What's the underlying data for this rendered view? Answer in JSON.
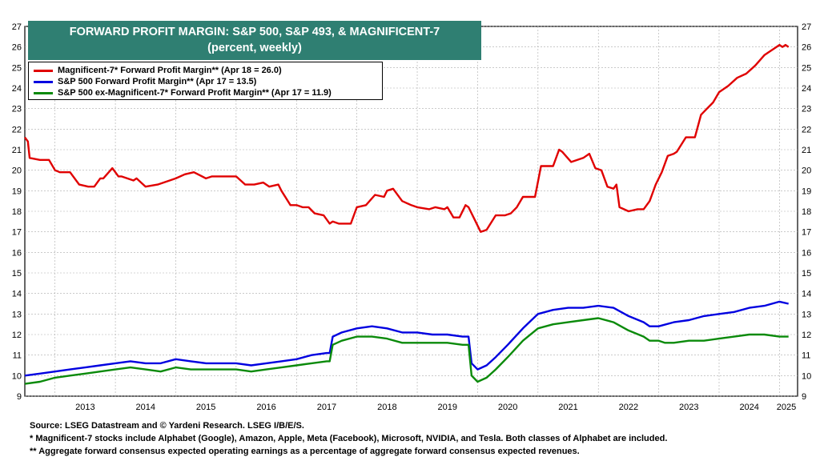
{
  "title": "FORWARD PROFIT MARGIN: S&P 500, S&P 493, & MAGNIFICENT-7",
  "subtitle": "(percent, weekly)",
  "legend": [
    {
      "label": "Magnificent-7* Forward Profit Margin** (Apr 18 = 26.0)",
      "color": "#e00000"
    },
    {
      "label": "S&P 500 Forward Profit Margin** (Apr 17 = 13.5)",
      "color": "#0000e0"
    },
    {
      "label": "S&P 500 ex-Magnificent-7* Forward Profit Margin** (Apr 17 = 11.9)",
      "color": "#0a8a0a"
    }
  ],
  "footnotes": [
    "Source: LSEG Datastream and © Yardeni Research. LSEG I/B/E/S.",
    "* Magnificent-7 stocks include Alphabet (Google), Amazon, Apple, Meta (Facebook), Microsoft, NVIDIA, and Tesla. Both classes of Alphabet are included.",
    "** Aggregate forward consensus expected operating earnings as a percentage of aggregate forward consensus expected revenues."
  ],
  "chart_data": {
    "type": "line",
    "title": "FORWARD PROFIT MARGIN: S&P 500, S&P 493, & MAGNIFICENT-7",
    "subtitle": "(percent, weekly)",
    "xlabel": "",
    "ylabel": "",
    "x_range": [
      2012.5,
      2025.3
    ],
    "ylim": [
      9,
      27
    ],
    "y_ticks": [
      9,
      10,
      11,
      12,
      13,
      14,
      15,
      16,
      17,
      18,
      19,
      20,
      21,
      22,
      23,
      24,
      25,
      26,
      27
    ],
    "x_tick_labels": [
      "2013",
      "2014",
      "2015",
      "2016",
      "2017",
      "2018",
      "2019",
      "2020",
      "2021",
      "2022",
      "2023",
      "2024",
      "2025"
    ],
    "grid": true,
    "legend_position": "top-left",
    "series": [
      {
        "name": "Magnificent-7* Forward Profit Margin** (Apr 18 = 26.0)",
        "color": "#e00000",
        "x": [
          2012.5,
          2012.55,
          2012.58,
          2012.75,
          2012.9,
          2013.0,
          2013.08,
          2013.15,
          2013.25,
          2013.4,
          2013.55,
          2013.65,
          2013.75,
          2013.8,
          2013.95,
          2014.05,
          2014.1,
          2014.3,
          2014.35,
          2014.5,
          2014.7,
          2014.9,
          2015.0,
          2015.15,
          2015.3,
          2015.5,
          2015.6,
          2015.85,
          2016.0,
          2016.15,
          2016.3,
          2016.45,
          2016.55,
          2016.7,
          2016.75,
          2016.9,
          2017.0,
          2017.1,
          2017.2,
          2017.3,
          2017.45,
          2017.55,
          2017.6,
          2017.7,
          2017.9,
          2018.0,
          2018.15,
          2018.3,
          2018.45,
          2018.5,
          2018.6,
          2018.75,
          2018.9,
          2019.0,
          2019.2,
          2019.3,
          2019.45,
          2019.5,
          2019.6,
          2019.7,
          2019.8,
          2019.85,
          2019.95,
          2020.05,
          2020.15,
          2020.3,
          2020.45,
          2020.55,
          2020.65,
          2020.75,
          2020.85,
          2020.95,
          2021.05,
          2021.1,
          2021.25,
          2021.35,
          2021.4,
          2021.55,
          2021.75,
          2021.85,
          2021.95,
          2022.05,
          2022.15,
          2022.25,
          2022.3,
          2022.35,
          2022.5,
          2022.65,
          2022.75,
          2022.85,
          2022.95,
          2023.05,
          2023.15,
          2023.25,
          2023.3,
          2023.45,
          2023.6,
          2023.7,
          2023.8,
          2023.9,
          2024.0,
          2024.15,
          2024.3,
          2024.45,
          2024.6,
          2024.75,
          2024.85,
          2024.95,
          2025.0,
          2025.05,
          2025.1,
          2025.15
        ],
        "y": [
          21.6,
          21.4,
          20.6,
          20.5,
          20.5,
          20.0,
          19.9,
          19.9,
          19.9,
          19.3,
          19.2,
          19.2,
          19.6,
          19.6,
          20.1,
          19.7,
          19.7,
          19.5,
          19.6,
          19.2,
          19.3,
          19.5,
          19.6,
          19.8,
          19.9,
          19.6,
          19.7,
          19.7,
          19.7,
          19.3,
          19.3,
          19.4,
          19.2,
          19.3,
          19.0,
          18.3,
          18.3,
          18.2,
          18.2,
          17.9,
          17.8,
          17.4,
          17.5,
          17.4,
          17.4,
          18.2,
          18.3,
          18.8,
          18.7,
          19.0,
          19.1,
          18.5,
          18.3,
          18.2,
          18.1,
          18.2,
          18.1,
          18.2,
          17.7,
          17.7,
          18.3,
          18.2,
          17.6,
          17.0,
          17.1,
          17.8,
          17.8,
          17.9,
          18.2,
          18.7,
          18.7,
          18.7,
          20.2,
          20.2,
          20.2,
          21.0,
          20.9,
          20.4,
          20.6,
          20.8,
          20.1,
          20.0,
          19.2,
          19.1,
          19.3,
          18.2,
          18.0,
          18.1,
          18.1,
          18.5,
          19.3,
          19.9,
          20.7,
          20.8,
          20.9,
          21.6,
          21.6,
          22.7,
          23.0,
          23.3,
          23.8,
          24.1,
          24.5,
          24.7,
          25.1,
          25.6,
          25.8,
          26.0,
          26.1,
          26.0,
          26.1,
          26.0
        ]
      },
      {
        "name": "S&P 500 Forward Profit Margin** (Apr 17 = 13.5)",
        "color": "#0000e0",
        "x": [
          2012.5,
          2012.75,
          2013.0,
          2013.25,
          2013.5,
          2013.75,
          2014.0,
          2014.25,
          2014.5,
          2014.75,
          2015.0,
          2015.25,
          2015.5,
          2015.75,
          2016.0,
          2016.25,
          2016.5,
          2016.75,
          2017.0,
          2017.25,
          2017.5,
          2017.55,
          2017.6,
          2017.75,
          2018.0,
          2018.25,
          2018.5,
          2018.75,
          2019.0,
          2019.25,
          2019.5,
          2019.75,
          2019.85,
          2019.9,
          2020.0,
          2020.15,
          2020.3,
          2020.5,
          2020.75,
          2021.0,
          2021.25,
          2021.5,
          2021.75,
          2022.0,
          2022.25,
          2022.5,
          2022.75,
          2022.85,
          2023.0,
          2023.25,
          2023.5,
          2023.75,
          2024.0,
          2024.25,
          2024.5,
          2024.75,
          2025.0,
          2025.15
        ],
        "y": [
          10.0,
          10.1,
          10.2,
          10.3,
          10.4,
          10.5,
          10.6,
          10.7,
          10.6,
          10.6,
          10.8,
          10.7,
          10.6,
          10.6,
          10.6,
          10.5,
          10.6,
          10.7,
          10.8,
          11.0,
          11.1,
          11.1,
          11.9,
          12.1,
          12.3,
          12.4,
          12.3,
          12.1,
          12.1,
          12.0,
          12.0,
          11.9,
          11.9,
          10.6,
          10.3,
          10.5,
          10.9,
          11.5,
          12.3,
          13.0,
          13.2,
          13.3,
          13.3,
          13.4,
          13.3,
          12.9,
          12.6,
          12.4,
          12.4,
          12.6,
          12.7,
          12.9,
          13.0,
          13.1,
          13.3,
          13.4,
          13.6,
          13.5
        ]
      },
      {
        "name": "S&P 500 ex-Magnificent-7* Forward Profit Margin** (Apr 17 = 11.9)",
        "color": "#0a8a0a",
        "x": [
          2012.5,
          2012.75,
          2013.0,
          2013.25,
          2013.5,
          2013.75,
          2014.0,
          2014.25,
          2014.5,
          2014.75,
          2015.0,
          2015.25,
          2015.5,
          2015.75,
          2016.0,
          2016.25,
          2016.5,
          2016.75,
          2017.0,
          2017.25,
          2017.5,
          2017.55,
          2017.6,
          2017.75,
          2018.0,
          2018.25,
          2018.5,
          2018.75,
          2019.0,
          2019.25,
          2019.5,
          2019.75,
          2019.85,
          2019.9,
          2020.0,
          2020.15,
          2020.3,
          2020.5,
          2020.75,
          2021.0,
          2021.25,
          2021.5,
          2021.75,
          2022.0,
          2022.25,
          2022.5,
          2022.75,
          2022.85,
          2023.0,
          2023.1,
          2023.25,
          2023.5,
          2023.75,
          2024.0,
          2024.25,
          2024.5,
          2024.75,
          2025.0,
          2025.15
        ],
        "y": [
          9.6,
          9.7,
          9.9,
          10.0,
          10.1,
          10.2,
          10.3,
          10.4,
          10.3,
          10.2,
          10.4,
          10.3,
          10.3,
          10.3,
          10.3,
          10.2,
          10.3,
          10.4,
          10.5,
          10.6,
          10.7,
          10.7,
          11.5,
          11.7,
          11.9,
          11.9,
          11.8,
          11.6,
          11.6,
          11.6,
          11.6,
          11.5,
          11.5,
          10.0,
          9.7,
          9.9,
          10.3,
          10.9,
          11.7,
          12.3,
          12.5,
          12.6,
          12.7,
          12.8,
          12.6,
          12.2,
          11.9,
          11.7,
          11.7,
          11.6,
          11.6,
          11.7,
          11.7,
          11.8,
          11.9,
          12.0,
          12.0,
          11.9,
          11.9
        ]
      }
    ]
  }
}
